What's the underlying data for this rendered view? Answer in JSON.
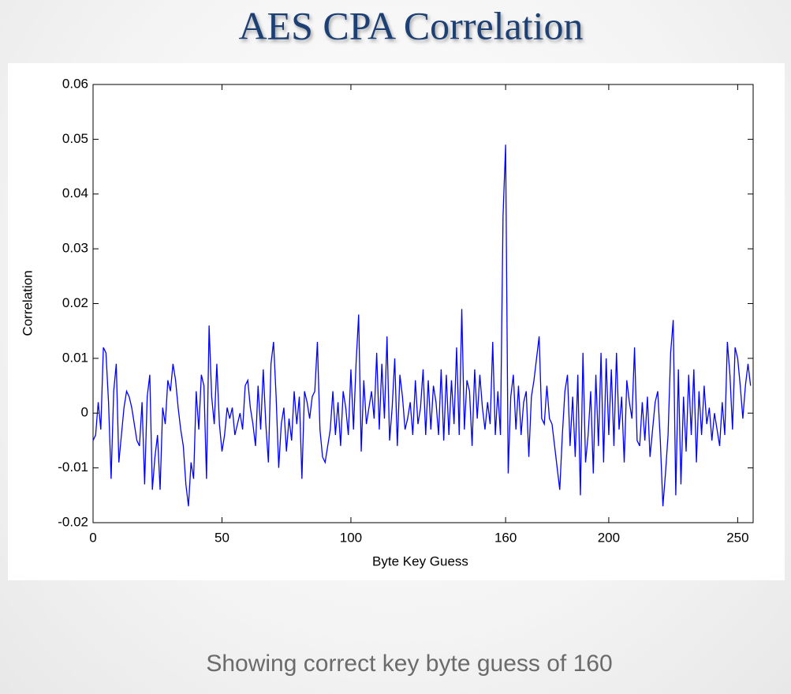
{
  "chart_data": {
    "type": "line",
    "title": "AES CPA Correlation",
    "caption": "Showing correct key byte guess of 160",
    "xlabel": "Byte Key Guess",
    "ylabel": "Correlation",
    "color": "#0000ff",
    "xlim": [
      0,
      256
    ],
    "ylim": [
      -0.02,
      0.06
    ],
    "xticks": [
      0,
      50,
      100,
      160,
      200,
      250
    ],
    "yticks": [
      -0.02,
      -0.01,
      0,
      0.01,
      0.02,
      0.03,
      0.04,
      0.05,
      0.06
    ],
    "x": [
      0,
      1,
      2,
      3,
      4,
      5,
      6,
      7,
      8,
      9,
      10,
      11,
      12,
      13,
      14,
      15,
      16,
      17,
      18,
      19,
      20,
      21,
      22,
      23,
      24,
      25,
      26,
      27,
      28,
      29,
      30,
      31,
      32,
      33,
      34,
      35,
      36,
      37,
      38,
      39,
      40,
      41,
      42,
      43,
      44,
      45,
      46,
      47,
      48,
      49,
      50,
      51,
      52,
      53,
      54,
      55,
      56,
      57,
      58,
      59,
      60,
      61,
      62,
      63,
      64,
      65,
      66,
      67,
      68,
      69,
      70,
      71,
      72,
      73,
      74,
      75,
      76,
      77,
      78,
      79,
      80,
      81,
      82,
      83,
      84,
      85,
      86,
      87,
      88,
      89,
      90,
      91,
      92,
      93,
      94,
      95,
      96,
      97,
      98,
      99,
      100,
      101,
      102,
      103,
      104,
      105,
      106,
      107,
      108,
      109,
      110,
      111,
      112,
      113,
      114,
      115,
      116,
      117,
      118,
      119,
      120,
      121,
      122,
      123,
      124,
      125,
      126,
      127,
      128,
      129,
      130,
      131,
      132,
      133,
      134,
      135,
      136,
      137,
      138,
      139,
      140,
      141,
      142,
      143,
      144,
      145,
      146,
      147,
      148,
      149,
      150,
      151,
      152,
      153,
      154,
      155,
      156,
      157,
      158,
      159,
      160,
      161,
      162,
      163,
      164,
      165,
      166,
      167,
      168,
      169,
      170,
      171,
      172,
      173,
      174,
      175,
      176,
      177,
      178,
      179,
      180,
      181,
      182,
      183,
      184,
      185,
      186,
      187,
      188,
      189,
      190,
      191,
      192,
      193,
      194,
      195,
      196,
      197,
      198,
      199,
      200,
      201,
      202,
      203,
      204,
      205,
      206,
      207,
      208,
      209,
      210,
      211,
      212,
      213,
      214,
      215,
      216,
      217,
      218,
      219,
      220,
      221,
      222,
      223,
      224,
      225,
      226,
      227,
      228,
      229,
      230,
      231,
      232,
      233,
      234,
      235,
      236,
      237,
      238,
      239,
      240,
      241,
      242,
      243,
      244,
      245,
      246,
      247,
      248,
      249,
      250,
      251,
      252,
      253,
      254,
      255
    ],
    "values": [
      -0.005,
      -0.004,
      0.002,
      -0.003,
      0.012,
      0.011,
      0.002,
      -0.012,
      0.004,
      0.009,
      -0.009,
      -0.004,
      0.001,
      0.004,
      0.003,
      0.001,
      -0.002,
      -0.005,
      -0.006,
      0.002,
      -0.013,
      0.003,
      0.007,
      -0.014,
      -0.008,
      -0.004,
      -0.014,
      0.001,
      -0.002,
      0.006,
      0.004,
      0.009,
      0.006,
      0.001,
      -0.003,
      -0.006,
      -0.013,
      -0.017,
      -0.009,
      -0.012,
      0.004,
      -0.003,
      0.007,
      0.005,
      -0.012,
      0.016,
      0.003,
      -0.002,
      0.009,
      -0.002,
      -0.007,
      -0.004,
      0.001,
      -0.001,
      0.001,
      -0.004,
      -0.002,
      0,
      -0.003,
      0.005,
      0.006,
      0.001,
      -0.002,
      -0.006,
      0.005,
      -0.003,
      0.008,
      -0.002,
      -0.009,
      0.009,
      0.013,
      0.003,
      -0.01,
      -0.002,
      0.001,
      -0.007,
      -0.001,
      -0.005,
      0.004,
      -0.002,
      0.003,
      -0.012,
      0.004,
      0.002,
      -0.001,
      0.003,
      0.004,
      0.013,
      -0.003,
      -0.008,
      -0.009,
      -0.006,
      -0.003,
      0.004,
      -0.004,
      0.002,
      -0.006,
      0.004,
      0.001,
      -0.004,
      0.008,
      -0.003,
      0.009,
      0.018,
      -0.007,
      0.006,
      -0.002,
      0.001,
      0.004,
      -0.001,
      0.011,
      -0.003,
      0.009,
      -0.001,
      0.014,
      -0.005,
      0.001,
      0.01,
      -0.006,
      0.007,
      0.003,
      -0.003,
      -0.001,
      0.002,
      -0.004,
      0.006,
      -0.002,
      0.001,
      0.008,
      -0.004,
      0.006,
      -0.003,
      0.005,
      0.002,
      -0.004,
      0.008,
      -0.005,
      0.007,
      -0.004,
      0.006,
      -0.002,
      0.012,
      -0.004,
      0.019,
      -0.003,
      0.006,
      0.004,
      -0.006,
      0.008,
      -0.001,
      0.007,
      0.001,
      -0.003,
      0.002,
      -0.002,
      0.013,
      -0.004,
      0.004,
      -0.004,
      0.036,
      0.049,
      -0.011,
      0.003,
      0.007,
      -0.003,
      0.005,
      -0.004,
      0.002,
      0.004,
      -0.008,
      0.003,
      0.006,
      0.01,
      0.014,
      -0.001,
      -0.002,
      0.005,
      -0.001,
      -0.002,
      -0.006,
      -0.01,
      -0.014,
      -0.004,
      0.004,
      0.007,
      -0.006,
      0.003,
      -0.008,
      0.007,
      -0.015,
      0.011,
      -0.009,
      -0.004,
      0.004,
      -0.011,
      0.007,
      -0.006,
      0.011,
      -0.009,
      0.01,
      -0.004,
      0.008,
      -0.006,
      0.011,
      -0.003,
      0.003,
      -0.009,
      0.006,
      0.002,
      -0.001,
      0.012,
      -0.005,
      -0.006,
      0.002,
      -0.005,
      0.003,
      -0.008,
      -0.003,
      0.002,
      0.004,
      -0.005,
      -0.017,
      -0.011,
      -0.004,
      0.011,
      0.017,
      -0.015,
      0.008,
      -0.013,
      0.003,
      -0.007,
      0.007,
      -0.004,
      0.008,
      -0.009,
      0.004,
      -0.004,
      0.005,
      -0.002,
      0.001,
      -0.005,
      0,
      -0.003,
      -0.006,
      0.002,
      -0.004,
      0.013,
      0.007,
      -0.003,
      0.012,
      0.01,
      0.005,
      -0.001,
      0.005,
      0.009,
      0.005
    ]
  }
}
